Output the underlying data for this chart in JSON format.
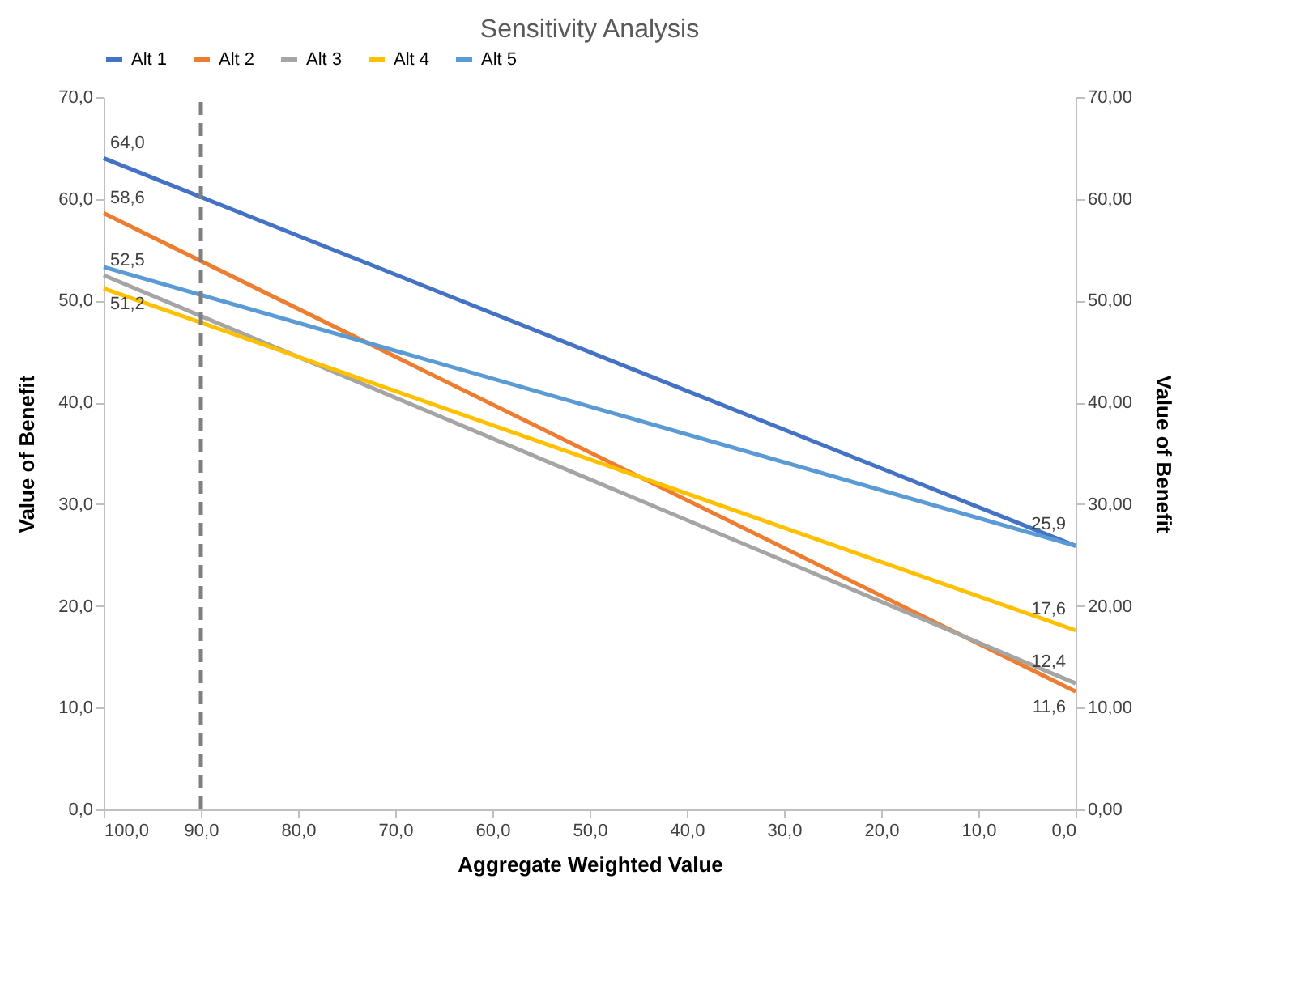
{
  "chart_data": {
    "type": "line",
    "title": "Sensitivity Analysis",
    "xlabel": "Aggregate Weighted Value",
    "ylabel": "Value of Benefit",
    "y2label": "Value of Benefit",
    "legend": "top",
    "x": [
      100,
      0
    ],
    "series": [
      {
        "name": "Alt 1",
        "color": "#4472c4",
        "values": [
          64.0,
          25.9
        ],
        "value_labels": [
          "64,0",
          "25,9"
        ]
      },
      {
        "name": "Alt 2",
        "color": "#ed7d31",
        "values": [
          58.6,
          11.6
        ],
        "value_labels": [
          "58,6",
          "11,6"
        ]
      },
      {
        "name": "Alt 3",
        "color": "#a5a5a5",
        "values": [
          52.5,
          12.4
        ],
        "value_labels": [
          "52,5",
          "12,4"
        ]
      },
      {
        "name": "Alt 4",
        "color": "#ffc000",
        "values": [
          51.2,
          17.6
        ],
        "value_labels": [
          "51,2",
          "17,6"
        ]
      },
      {
        "name": "Alt 5",
        "color": "#5b9bd5",
        "values": [
          53.3,
          25.9
        ],
        "value_labels": [
          null,
          null
        ]
      }
    ],
    "xlim": [
      100,
      0
    ],
    "xticks": [
      {
        "value": 100,
        "label": "100,0"
      },
      {
        "value": 90,
        "label": "90,0"
      },
      {
        "value": 80,
        "label": "80,0"
      },
      {
        "value": 70,
        "label": "70,0"
      },
      {
        "value": 60,
        "label": "60,0"
      },
      {
        "value": 50,
        "label": "50,0"
      },
      {
        "value": 40,
        "label": "40,0"
      },
      {
        "value": 30,
        "label": "30,0"
      },
      {
        "value": 20,
        "label": "20,0"
      },
      {
        "value": 10,
        "label": "10,0"
      },
      {
        "value": 0,
        "label": "0,0"
      }
    ],
    "ylim": [
      0,
      70
    ],
    "yticks": [
      {
        "value": 0,
        "label": "0,0"
      },
      {
        "value": 10,
        "label": "10,0"
      },
      {
        "value": 20,
        "label": "20,0"
      },
      {
        "value": 30,
        "label": "30,0"
      },
      {
        "value": 40,
        "label": "40,0"
      },
      {
        "value": 50,
        "label": "50,0"
      },
      {
        "value": 60,
        "label": "60,0"
      },
      {
        "value": 70,
        "label": "70,0"
      }
    ],
    "y2lim": [
      0,
      70
    ],
    "y2ticks": [
      {
        "value": 0,
        "label": "0,00"
      },
      {
        "value": 10,
        "label": "10,00"
      },
      {
        "value": 20,
        "label": "20,00"
      },
      {
        "value": 30,
        "label": "30,00"
      },
      {
        "value": 40,
        "label": "40,00"
      },
      {
        "value": 50,
        "label": "50,00"
      },
      {
        "value": 60,
        "label": "60,00"
      },
      {
        "value": 70,
        "label": "70,00"
      }
    ],
    "ref_lines": [
      {
        "axis": "x",
        "value": 90,
        "color": "#7f7f7f",
        "line_style": "dashed"
      }
    ]
  }
}
